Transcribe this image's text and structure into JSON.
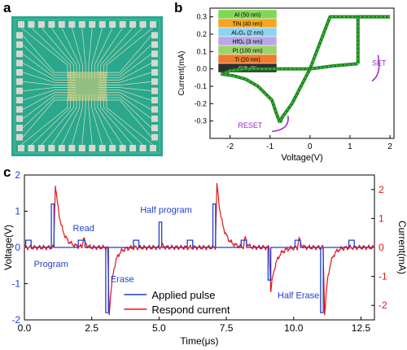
{
  "panels": {
    "a": "a",
    "b": "b",
    "c": "c"
  },
  "colors": {
    "chip_bg": "#2aa88d",
    "chip_trace": "#c9d8b8",
    "pad": "#d8d8cf",
    "iv_curve": "#1b8a1b",
    "pulse": "#1f3fd1",
    "current": "#e0141a",
    "annot": "#9b28c9"
  },
  "stack_layers": [
    {
      "label": "Al (50 nm)",
      "color": "#7ed957",
      "text_color": "#000000"
    },
    {
      "label": "TiN (40 nm)",
      "color": "#f6a623",
      "text_color": "#000000"
    },
    {
      "label": "Al₂O₃ (2 nm)",
      "color": "#8fd3f0",
      "text_color": "#000000"
    },
    {
      "label": "HfOₓ (3 nm)",
      "color": "#b9a7e6",
      "text_color": "#000000"
    },
    {
      "label": "Pt (100 nm)",
      "color": "#9bd46b",
      "text_color": "#000000"
    },
    {
      "label": "Ti (20 nm)",
      "color": "#f07a2b",
      "text_color": "#000000"
    },
    {
      "label": "SiO₂/Si",
      "color": "#2f2f2f",
      "text_color": "#ffffff"
    }
  ],
  "chart_data": [
    {
      "id": "b",
      "type": "line",
      "xlabel": "Voltage(V)",
      "ylabel": "Current(mA)",
      "xlim": [
        -2.5,
        2.1
      ],
      "ylim": [
        -0.4,
        0.35
      ],
      "xticks": [
        "-2",
        "-1",
        "0",
        "1",
        "2"
      ],
      "xtick_values": [
        -2,
        -1,
        0,
        1,
        2
      ],
      "yticks": [
        "-0.3",
        "-0.2",
        "-0.1",
        "0.0",
        "0.1",
        "0.2",
        "0.3"
      ],
      "ytick_values": [
        -0.3,
        -0.2,
        -0.1,
        0.0,
        0.1,
        0.2,
        0.3
      ],
      "annotations": [
        "SET",
        "RESET"
      ],
      "series": [
        {
          "x": [
            0,
            0.5,
            2.0
          ],
          "y": [
            0,
            0.3,
            0.3
          ]
        },
        {
          "x": [
            2.0,
            1.2,
            1.2
          ],
          "y": [
            0.3,
            0.3,
            0.03
          ]
        },
        {
          "x": [
            1.2,
            0.6,
            0,
            -0.45,
            -0.7,
            -0.75
          ],
          "y": [
            0.03,
            0.018,
            0,
            -0.2,
            -0.28,
            -0.31
          ]
        },
        {
          "x": [
            -0.75,
            -0.85,
            -0.95,
            -1.3,
            -1.6,
            -1.9,
            -2.2,
            -2.0,
            -1.6,
            -1.0,
            -0.4,
            0
          ],
          "y": [
            -0.31,
            -0.25,
            -0.18,
            -0.1,
            -0.06,
            -0.04,
            -0.03,
            -0.01,
            0.0,
            0.0,
            0.0,
            0
          ]
        }
      ]
    },
    {
      "id": "c",
      "type": "line",
      "xlabel": "Time(μs)",
      "ylabel_left": "Voltage(V)",
      "ylabel_right": "Current(mA)",
      "xlim": [
        0,
        13
      ],
      "ylim_left": [
        -2,
        2
      ],
      "ylim_right": [
        -2.5,
        2.5
      ],
      "xticks": [
        "0.0",
        "2.5",
        "5.0",
        "7.5",
        "10.0",
        "12.5"
      ],
      "xtick_values": [
        0,
        2.5,
        5.0,
        7.5,
        10.0,
        12.5
      ],
      "yticks_left": [
        "-2",
        "-1",
        "0",
        "1",
        "2"
      ],
      "ytick_left_values": [
        -2,
        -1,
        0,
        1,
        2
      ],
      "yticks_right": [
        "-2",
        "-1",
        "0",
        "1",
        "2"
      ],
      "ytick_right_values": [
        -2,
        -1,
        0,
        1,
        2
      ],
      "annotations": {
        "program": "Program",
        "read": "Read",
        "erase": "Erase",
        "half_program": "Half program",
        "half_erase": "Half Erase"
      },
      "legend": {
        "pulse": "Applied pulse",
        "current": "Respond current"
      },
      "series": [
        {
          "name": "Applied pulse",
          "axis": "left",
          "pulses": [
            {
              "start": 0.05,
              "end": 0.25,
              "amp": 0.2
            },
            {
              "start": 1.0,
              "end": 1.1,
              "amp": 1.2
            },
            {
              "start": 2.0,
              "end": 2.25,
              "amp": 0.2
            },
            {
              "start": 3.02,
              "end": 3.12,
              "amp": -1.8
            },
            {
              "start": 4.05,
              "end": 4.25,
              "amp": 0.2
            },
            {
              "start": 5.0,
              "end": 5.1,
              "amp": 0.7
            },
            {
              "start": 6.05,
              "end": 6.25,
              "amp": 0.2
            },
            {
              "start": 7.0,
              "end": 7.1,
              "amp": 1.2
            },
            {
              "start": 8.05,
              "end": 8.25,
              "amp": 0.2
            },
            {
              "start": 9.05,
              "end": 9.15,
              "amp": -0.9
            },
            {
              "start": 10.05,
              "end": 10.25,
              "amp": 0.2
            },
            {
              "start": 11.0,
              "end": 11.1,
              "amp": -1.8
            },
            {
              "start": 12.05,
              "end": 12.25,
              "amp": 0.2
            }
          ]
        },
        {
          "name": "Respond current",
          "axis": "right",
          "spikes": [
            {
              "t": 1.15,
              "peak": 2.2,
              "decay": 0.6
            },
            {
              "t": 2.2,
              "peak": 0.35,
              "decay": 0.2
            },
            {
              "t": 3.15,
              "peak": -2.3,
              "decay": 0.45
            },
            {
              "t": 5.1,
              "peak": 0.1,
              "decay": 0.2
            },
            {
              "t": 7.15,
              "peak": 2.2,
              "decay": 0.6
            },
            {
              "t": 8.2,
              "peak": 0.35,
              "decay": 0.2
            },
            {
              "t": 9.15,
              "peak": -1.5,
              "decay": 0.55
            },
            {
              "t": 10.2,
              "peak": 0.35,
              "decay": 0.2
            },
            {
              "t": 11.15,
              "peak": -2.3,
              "decay": 0.45
            }
          ]
        }
      ]
    }
  ]
}
